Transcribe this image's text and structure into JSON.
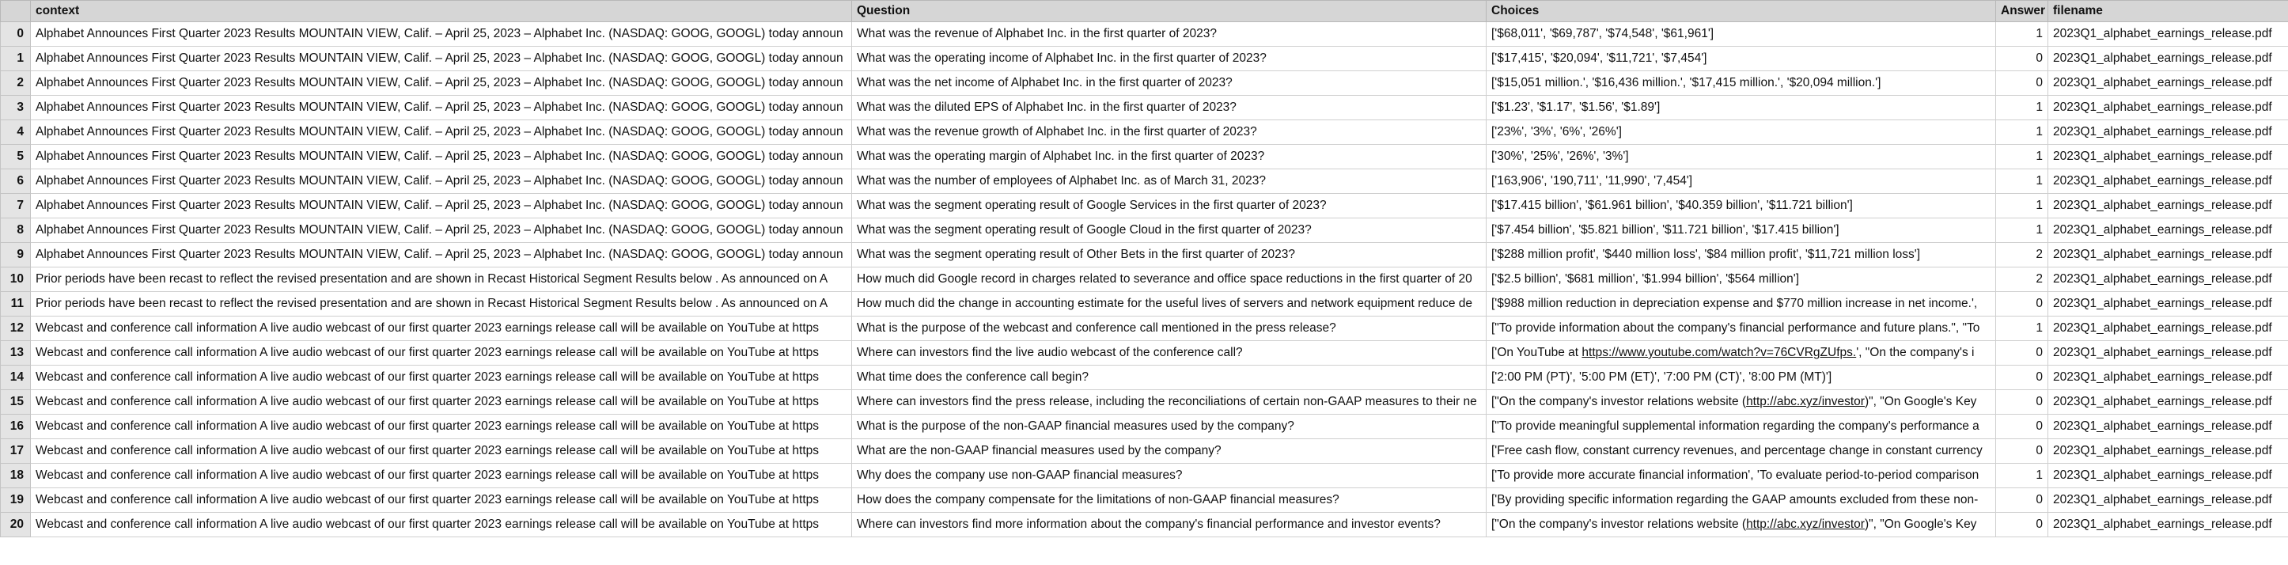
{
  "columns": {
    "index": "",
    "context": "context",
    "question": "Question",
    "choices": "Choices",
    "answer": "Answer",
    "filename": "filename"
  },
  "rows": [
    {
      "idx": "0",
      "context": "Alphabet Announces First Quarter  2023  Results MOUNTAIN VIEW, Calif. – April 25, 2023  – Alphabet Inc. (NASDAQ: GOOG, GOOGL) today announ",
      "question": "What was the revenue of Alphabet Inc. in the first quarter of 2023?",
      "choices": "['$68,011', '$69,787', '$74,548', '$61,961']",
      "answer": "1",
      "filename": "2023Q1_alphabet_earnings_release.pdf"
    },
    {
      "idx": "1",
      "context": "Alphabet Announces First Quarter  2023  Results MOUNTAIN VIEW, Calif. – April 25, 2023  – Alphabet Inc. (NASDAQ: GOOG, GOOGL) today announ",
      "question": "What was the operating income of Alphabet Inc. in the first quarter of 2023?",
      "choices": "['$17,415', '$20,094', '$11,721', '$7,454']",
      "answer": "0",
      "filename": "2023Q1_alphabet_earnings_release.pdf"
    },
    {
      "idx": "2",
      "context": "Alphabet Announces First Quarter  2023  Results MOUNTAIN VIEW, Calif. – April 25, 2023  – Alphabet Inc. (NASDAQ: GOOG, GOOGL) today announ",
      "question": "What was the net income of Alphabet Inc. in the first quarter of 2023?",
      "choices": "['$15,051 million.', '$16,436 million.', '$17,415 million.', '$20,094 million.']",
      "answer": "0",
      "filename": "2023Q1_alphabet_earnings_release.pdf"
    },
    {
      "idx": "3",
      "context": "Alphabet Announces First Quarter  2023  Results MOUNTAIN VIEW, Calif. – April 25, 2023  – Alphabet Inc. (NASDAQ: GOOG, GOOGL) today announ",
      "question": "What was the diluted EPS of Alphabet Inc. in the first quarter of 2023?",
      "choices": "['$1.23', '$1.17', '$1.56', '$1.89']",
      "answer": "1",
      "filename": "2023Q1_alphabet_earnings_release.pdf"
    },
    {
      "idx": "4",
      "context": "Alphabet Announces First Quarter  2023  Results MOUNTAIN VIEW, Calif. – April 25, 2023  – Alphabet Inc. (NASDAQ: GOOG, GOOGL) today announ",
      "question": "What was the revenue growth of Alphabet Inc. in the first quarter of 2023?",
      "choices": "['23%', '3%', '6%', '26%']",
      "answer": "1",
      "filename": "2023Q1_alphabet_earnings_release.pdf"
    },
    {
      "idx": "5",
      "context": "Alphabet Announces First Quarter  2023  Results MOUNTAIN VIEW, Calif. – April 25, 2023  – Alphabet Inc. (NASDAQ: GOOG, GOOGL) today announ",
      "question": "What was the operating margin of Alphabet Inc. in the first quarter of 2023?",
      "choices": "['30%', '25%', '26%', '3%']",
      "answer": "1",
      "filename": "2023Q1_alphabet_earnings_release.pdf"
    },
    {
      "idx": "6",
      "context": "Alphabet Announces First Quarter  2023  Results MOUNTAIN VIEW, Calif. – April 25, 2023  – Alphabet Inc. (NASDAQ: GOOG, GOOGL) today announ",
      "question": "What was the number of employees of Alphabet Inc. as of March 31, 2023?",
      "choices": "['163,906', '190,711', '11,990', '7,454']",
      "answer": "1",
      "filename": "2023Q1_alphabet_earnings_release.pdf"
    },
    {
      "idx": "7",
      "context": "Alphabet Announces First Quarter  2023  Results MOUNTAIN VIEW, Calif. – April 25, 2023  – Alphabet Inc. (NASDAQ: GOOG, GOOGL) today announ",
      "question": "What was the segment operating result of Google Services in the first quarter of 2023?",
      "choices": "['$17.415 billion', '$61.961 billion', '$40.359 billion', '$11.721 billion']",
      "answer": "1",
      "filename": "2023Q1_alphabet_earnings_release.pdf"
    },
    {
      "idx": "8",
      "context": "Alphabet Announces First Quarter  2023  Results MOUNTAIN VIEW, Calif. – April 25, 2023  – Alphabet Inc. (NASDAQ: GOOG, GOOGL) today announ",
      "question": "What was the segment operating result of Google Cloud in the first quarter of 2023?",
      "choices": "['$7.454 billion', '$5.821 billion', '$11.721 billion', '$17.415 billion']",
      "answer": "1",
      "filename": "2023Q1_alphabet_earnings_release.pdf"
    },
    {
      "idx": "9",
      "context": "Alphabet Announces First Quarter  2023  Results MOUNTAIN VIEW, Calif. – April 25, 2023  – Alphabet Inc. (NASDAQ: GOOG, GOOGL) today announ",
      "question": "What was the segment operating result of Other Bets in the first quarter of 2023?",
      "choices": "['$288 million profit', '$440 million loss', '$84 million profit', '$11,721 million loss']",
      "answer": "2",
      "filename": "2023Q1_alphabet_earnings_release.pdf"
    },
    {
      "idx": "10",
      "context": "Prior periods have  been recast to reflect the revised presentation and are shown in Recast Historical Segment Results below . As announced on A",
      "question": "How much did Google record in charges related to severance and office space reductions in the first quarter of 20",
      "choices": "['$2.5 billion', '$681 million', '$1.994 billion', '$564 million']",
      "answer": "2",
      "filename": "2023Q1_alphabet_earnings_release.pdf"
    },
    {
      "idx": "11",
      "context": "Prior periods have  been recast to reflect the revised presentation and are shown in Recast Historical Segment Results below . As announced on A",
      "question": "How much did the change in accounting estimate for the useful lives of servers and network equipment reduce de",
      "choices": "['$988 million reduction in depreciation expense and $770 million increase in net income.',",
      "answer": "0",
      "filename": "2023Q1_alphabet_earnings_release.pdf"
    },
    {
      "idx": "12",
      "context": "Webcast and conference call information A live audio webcast of our first quarter  2023  earnings release call will be available on YouTube at https",
      "question": "What is the purpose of the webcast and conference call mentioned in the press release?",
      "choices": "[\"To provide information about the company's financial performance and future plans.\", \"To",
      "answer": "1",
      "filename": "2023Q1_alphabet_earnings_release.pdf"
    },
    {
      "idx": "13",
      "context": "Webcast and conference call information A live audio webcast of our first quarter  2023  earnings release call will be available on YouTube at https",
      "question": "Where can investors find the live audio webcast of the conference call?",
      "choices": "['On YouTube at https://www.youtube.com/watch?v=76CVRgZUfps.', \"On the company's i",
      "answer": "0",
      "filename": "2023Q1_alphabet_earnings_release.pdf"
    },
    {
      "idx": "14",
      "context": "Webcast and conference call information A live audio webcast of our first quarter  2023  earnings release call will be available on YouTube at https",
      "question": "What time does the conference call begin?",
      "choices": "['2:00 PM (PT)', '5:00 PM (ET)', '7:00 PM (CT)', '8:00 PM (MT)']",
      "answer": "0",
      "filename": "2023Q1_alphabet_earnings_release.pdf"
    },
    {
      "idx": "15",
      "context": "Webcast and conference call information A live audio webcast of our first quarter  2023  earnings release call will be available on YouTube at https",
      "question": "Where can investors find the press release, including the reconciliations of certain non-GAAP measures to their ne",
      "choices": "[\"On the company's investor relations website (http://abc.xyz/investor)\", \"On Google's Key",
      "answer": "0",
      "filename": "2023Q1_alphabet_earnings_release.pdf"
    },
    {
      "idx": "16",
      "context": "Webcast and conference call information A live audio webcast of our first quarter  2023  earnings release call will be available on YouTube at https",
      "question": "What is the purpose of the non-GAAP financial measures used by the company?",
      "choices": "[\"To provide meaningful supplemental information regarding the company's performance a",
      "answer": "0",
      "filename": "2023Q1_alphabet_earnings_release.pdf"
    },
    {
      "idx": "17",
      "context": "Webcast and conference call information A live audio webcast of our first quarter  2023  earnings release call will be available on YouTube at https",
      "question": "What are the non-GAAP financial measures used by the company?",
      "choices": "['Free cash flow, constant currency revenues, and percentage change in constant currency",
      "answer": "0",
      "filename": "2023Q1_alphabet_earnings_release.pdf"
    },
    {
      "idx": "18",
      "context": "Webcast and conference call information A live audio webcast of our first quarter  2023  earnings release call will be available on YouTube at https",
      "question": "Why does the company use non-GAAP financial measures?",
      "choices": "['To provide more accurate financial information', 'To evaluate period-to-period comparison",
      "answer": "1",
      "filename": "2023Q1_alphabet_earnings_release.pdf"
    },
    {
      "idx": "19",
      "context": "Webcast and conference call information A live audio webcast of our first quarter  2023  earnings release call will be available on YouTube at https",
      "question": "How does the company compensate for the limitations of non-GAAP financial measures?",
      "choices": "['By providing specific information regarding the GAAP amounts excluded from these non-",
      "answer": "0",
      "filename": "2023Q1_alphabet_earnings_release.pdf"
    },
    {
      "idx": "20",
      "context": "Webcast and conference call information A live audio webcast of our first quarter  2023  earnings release call will be available on YouTube at https",
      "question": "Where can investors find more information about the company's financial performance and investor events?",
      "choices": "[\"On the company's investor relations website (http://abc.xyz/investor)\", \"On Google's Key",
      "answer": "0",
      "filename": "2023Q1_alphabet_earnings_release.pdf"
    }
  ]
}
